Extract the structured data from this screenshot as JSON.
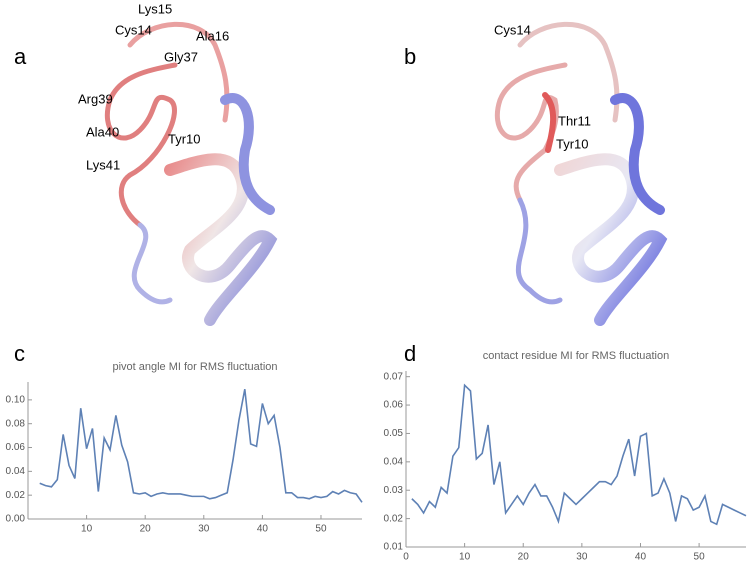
{
  "figure": {
    "panel_labels": [
      "a",
      "b",
      "c",
      "d"
    ],
    "structure_a_labels": [
      "Lys15",
      "Cys14",
      "Ala16",
      "Gly37",
      "Arg39",
      "Ala40",
      "Tyr10",
      "Lys41"
    ],
    "structure_b_labels": [
      "Cys14",
      "Thr11",
      "Tyr10"
    ]
  },
  "chart_data": [
    {
      "type": "line",
      "title": "pivot angle MI for RMS fluctuation",
      "x": [
        2,
        3,
        4,
        5,
        6,
        7,
        8,
        9,
        10,
        11,
        12,
        13,
        14,
        15,
        16,
        17,
        18,
        19,
        20,
        21,
        22,
        23,
        24,
        25,
        26,
        27,
        28,
        29,
        30,
        31,
        32,
        33,
        34,
        35,
        36,
        37,
        38,
        39,
        40,
        41,
        42,
        43,
        44,
        45,
        46,
        47,
        48,
        49,
        50,
        51,
        52,
        53,
        54,
        55,
        56,
        57
      ],
      "series": [
        {
          "color": "#5e81b5",
          "values": [
            0.03,
            0.028,
            0.027,
            0.033,
            0.071,
            0.045,
            0.034,
            0.093,
            0.059,
            0.076,
            0.023,
            0.068,
            0.058,
            0.087,
            0.062,
            0.048,
            0.022,
            0.021,
            0.022,
            0.019,
            0.021,
            0.022,
            0.021,
            0.021,
            0.021,
            0.02,
            0.019,
            0.019,
            0.019,
            0.017,
            0.018,
            0.02,
            0.022,
            0.05,
            0.083,
            0.109,
            0.063,
            0.061,
            0.097,
            0.08,
            0.087,
            0.06,
            0.022,
            0.022,
            0.018,
            0.018,
            0.017,
            0.019,
            0.018,
            0.019,
            0.023,
            0.021,
            0.024,
            0.022,
            0.021,
            0.014
          ]
        }
      ],
      "xlim": [
        0,
        57
      ],
      "ylim": [
        0,
        0.115
      ],
      "xticks": [
        10,
        20,
        30,
        40,
        50
      ],
      "yticks": [
        {
          "value": 0,
          "label": "0.00"
        },
        0.02,
        0.04,
        0.06,
        0.08,
        {
          "value": 0.1,
          "label": "0.10"
        }
      ]
    },
    {
      "type": "line",
      "title": "contact residue MI for RMS fluctuation",
      "x": [
        1,
        2,
        3,
        4,
        5,
        6,
        7,
        8,
        9,
        10,
        11,
        12,
        13,
        14,
        15,
        16,
        17,
        18,
        19,
        20,
        21,
        22,
        23,
        24,
        25,
        26,
        27,
        28,
        29,
        30,
        31,
        32,
        33,
        34,
        35,
        36,
        37,
        38,
        39,
        40,
        41,
        42,
        43,
        44,
        45,
        46,
        47,
        48,
        49,
        50,
        51,
        52,
        53,
        54,
        55,
        56,
        57,
        58
      ],
      "series": [
        {
          "color": "#5e81b5",
          "values": [
            0.027,
            0.025,
            0.022,
            0.026,
            0.024,
            0.031,
            0.029,
            0.042,
            0.045,
            0.067,
            0.065,
            0.041,
            0.043,
            0.053,
            0.032,
            0.04,
            0.022,
            0.025,
            0.028,
            0.025,
            0.029,
            0.032,
            0.028,
            0.028,
            0.024,
            0.019,
            0.029,
            0.027,
            0.025,
            0.027,
            0.029,
            0.031,
            0.033,
            0.033,
            0.032,
            0.035,
            0.042,
            0.048,
            0.035,
            0.049,
            0.05,
            0.028,
            0.029,
            0.034,
            0.029,
            0.019,
            0.028,
            0.027,
            0.023,
            0.024,
            0.028,
            0.019,
            0.018,
            0.025,
            0.024,
            0.023,
            0.022,
            0.021
          ]
        }
      ],
      "xlim": [
        0,
        58
      ],
      "ylim": [
        0.01,
        0.072
      ],
      "xticks": [
        0,
        10,
        20,
        30,
        40,
        50
      ],
      "yticks": [
        0.01,
        0.02,
        0.03,
        0.04,
        0.05,
        0.06,
        0.07
      ]
    }
  ]
}
